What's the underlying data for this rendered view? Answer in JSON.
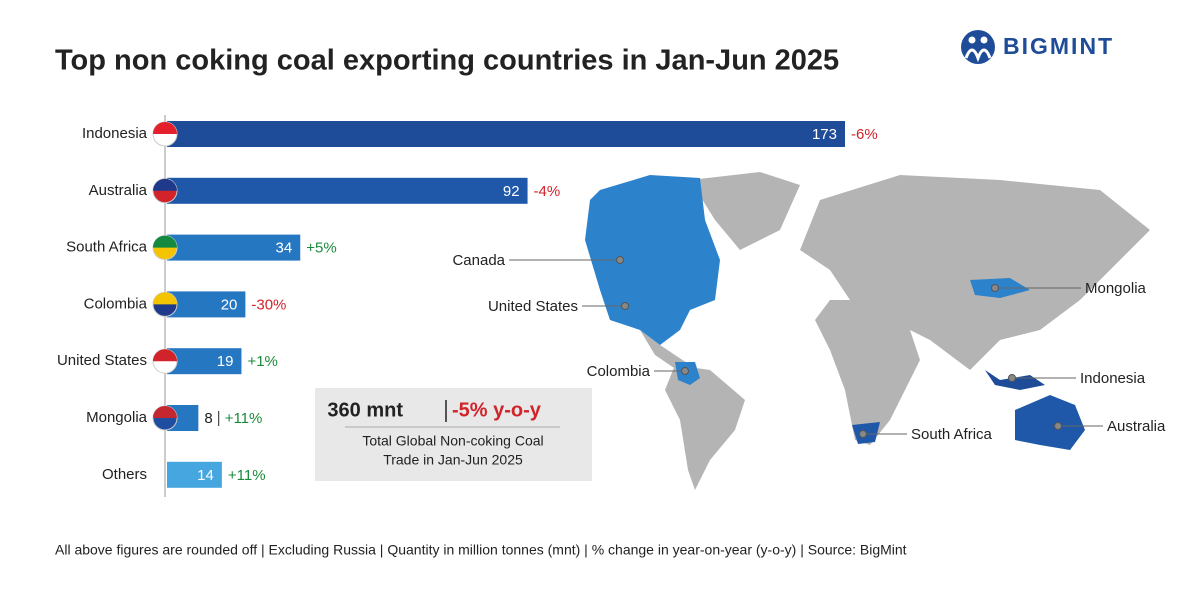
{
  "chart_data": {
    "type": "bar",
    "title": "Top non coking coal exporting countries in Jan-Jun 2025",
    "brand": "BIGMINT",
    "categories": [
      "Indonesia",
      "Australia",
      "South Africa",
      "Colombia",
      "United States",
      "Mongolia",
      "Others"
    ],
    "values": [
      173,
      92,
      34,
      20,
      19,
      8,
      14
    ],
    "colors": [
      "#1f4c98",
      "#1f58a8",
      "#2677c2",
      "#2677c2",
      "#2677c2",
      "#2677c2",
      "#45a6e0"
    ],
    "changes": [
      -6,
      -4,
      5,
      -30,
      1,
      11,
      11
    ],
    "change_labels": [
      "-6%",
      "-4%",
      "+5%",
      "-30%",
      "+1%",
      "+11%",
      "+11%"
    ],
    "summary": {
      "total_label": "360 mnt",
      "change_label": "-5% y-o-y",
      "caption": [
        "Total Global Non-coking Coal",
        "Trade in Jan-Jun 2025"
      ]
    },
    "map_labels": [
      "Canada",
      "United States",
      "Colombia",
      "Mongolia",
      "Indonesia",
      "South Africa",
      "Australia"
    ],
    "footnote": "All above figures are rounded off | Excluding Russia | Quantity in million tonnes (mnt) | % change in year-on-year (y-o-y) | Source: BigMint"
  }
}
